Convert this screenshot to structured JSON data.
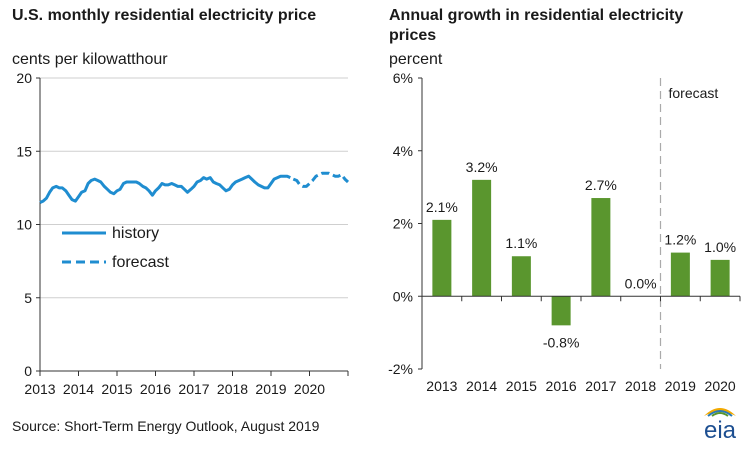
{
  "source": "Source: Short-Term Energy Outlook, August 2019",
  "logo_text": "eia",
  "colors": {
    "line": "#1f8dd0",
    "bar": "#5a962e",
    "axis": "#333333",
    "grid": "#cfcfcf",
    "divider": "#aaaaaa"
  },
  "chart_data": [
    {
      "type": "line",
      "title": "U.S. monthly residential electricity price",
      "subtitle": "cents per kilowatthour",
      "x_ticks": [
        "2013",
        "2014",
        "2015",
        "2016",
        "2017",
        "2018",
        "2019",
        "2020"
      ],
      "y_ticks": [
        "0",
        "5",
        "10",
        "15",
        "20"
      ],
      "xlim": [
        2013,
        2021
      ],
      "ylim": [
        0,
        20
      ],
      "legend_position": "center-left",
      "series": [
        {
          "name": "history",
          "style": "solid",
          "x": [
            2013.0,
            2013.08,
            2013.17,
            2013.25,
            2013.33,
            2013.42,
            2013.5,
            2013.58,
            2013.67,
            2013.75,
            2013.83,
            2013.92,
            2014.0,
            2014.08,
            2014.17,
            2014.25,
            2014.33,
            2014.42,
            2014.5,
            2014.58,
            2014.67,
            2014.75,
            2014.83,
            2014.92,
            2015.0,
            2015.08,
            2015.17,
            2015.25,
            2015.33,
            2015.42,
            2015.5,
            2015.58,
            2015.67,
            2015.75,
            2015.83,
            2015.92,
            2016.0,
            2016.08,
            2016.17,
            2016.25,
            2016.33,
            2016.42,
            2016.5,
            2016.58,
            2016.67,
            2016.75,
            2016.83,
            2016.92,
            2017.0,
            2017.08,
            2017.17,
            2017.25,
            2017.33,
            2017.42,
            2017.5,
            2017.58,
            2017.67,
            2017.75,
            2017.83,
            2017.92,
            2018.0,
            2018.08,
            2018.17,
            2018.25,
            2018.33,
            2018.42,
            2018.5,
            2018.58,
            2018.67,
            2018.75,
            2018.83,
            2018.92,
            2019.0,
            2019.08,
            2019.17,
            2019.25,
            2019.33,
            2019.42,
            2019.5
          ],
          "values": [
            11.5,
            11.6,
            11.8,
            12.2,
            12.5,
            12.6,
            12.5,
            12.5,
            12.3,
            12.0,
            11.7,
            11.6,
            11.9,
            12.2,
            12.3,
            12.8,
            13.0,
            13.1,
            13.0,
            12.9,
            12.6,
            12.4,
            12.2,
            12.1,
            12.3,
            12.4,
            12.8,
            12.9,
            12.9,
            12.9,
            12.9,
            12.8,
            12.6,
            12.5,
            12.3,
            12.0,
            12.3,
            12.5,
            12.8,
            12.7,
            12.7,
            12.8,
            12.7,
            12.6,
            12.6,
            12.4,
            12.2,
            12.4,
            12.6,
            12.9,
            13.0,
            13.2,
            13.1,
            13.2,
            12.9,
            12.8,
            12.7,
            12.5,
            12.3,
            12.4,
            12.7,
            12.9,
            13.0,
            13.1,
            13.2,
            13.3,
            13.1,
            12.9,
            12.7,
            12.6,
            12.5,
            12.5,
            12.8,
            13.1,
            13.2,
            13.3,
            13.3,
            13.3,
            13.2
          ]
        },
        {
          "name": "forecast",
          "style": "dashed",
          "x": [
            2019.58,
            2019.67,
            2019.75,
            2019.83,
            2019.92,
            2020.0,
            2020.08,
            2020.17,
            2020.25,
            2020.33,
            2020.42,
            2020.5,
            2020.58,
            2020.67,
            2020.75,
            2020.83,
            2020.92,
            2021.0
          ],
          "values": [
            13.1,
            13.0,
            12.7,
            12.6,
            12.6,
            12.8,
            13.0,
            13.3,
            13.4,
            13.5,
            13.5,
            13.5,
            13.4,
            13.3,
            13.3,
            13.4,
            13.1,
            12.9
          ]
        }
      ]
    },
    {
      "type": "bar",
      "title": "Annual growth in residential electricity prices",
      "subtitle": "percent",
      "categories": [
        "2013",
        "2014",
        "2015",
        "2016",
        "2017",
        "2018",
        "2019",
        "2020"
      ],
      "values": [
        2.1,
        3.2,
        1.1,
        -0.8,
        2.7,
        0.0,
        1.2,
        1.0
      ],
      "data_labels": [
        "2.1%",
        "3.2%",
        "1.1%",
        "-0.8%",
        "2.7%",
        "0.0%",
        "1.2%",
        "1.0%"
      ],
      "y_ticks": [
        "6%",
        "4%",
        "2%",
        "0%",
        "-2%"
      ],
      "ylim": [
        -2,
        6
      ],
      "annotation": "forecast",
      "forecast_starts_at": "2019"
    }
  ]
}
